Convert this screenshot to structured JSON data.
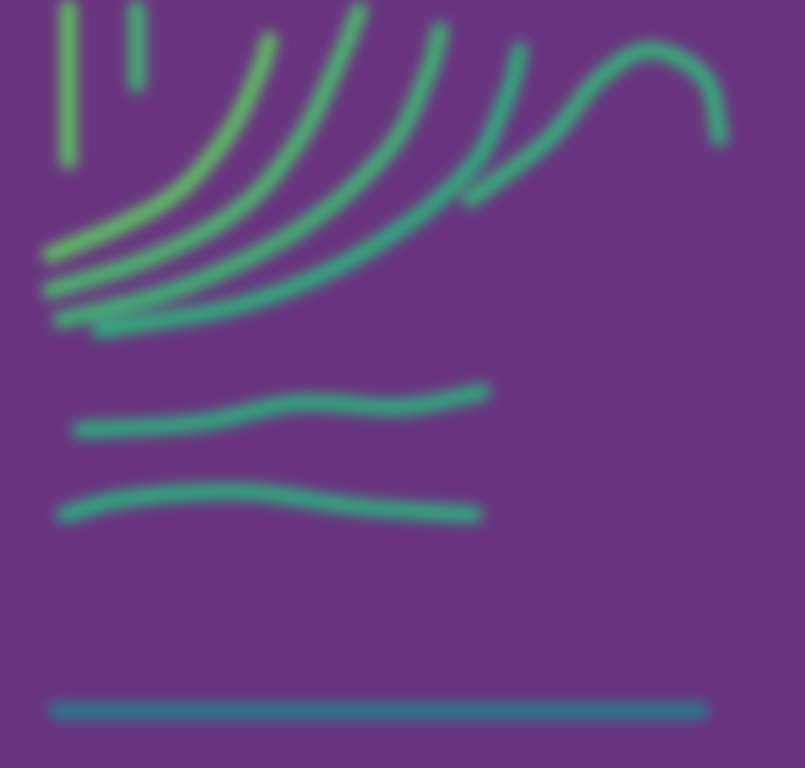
{
  "chart_data": {
    "type": "line",
    "xlim": [
      0,
      10
    ],
    "ylim": [
      0,
      10
    ],
    "grid": false,
    "tick_labels": false,
    "series": [
      {
        "color": "#5ec962",
        "x": [
          0.62,
          1.49,
          2.24,
          2.86,
          3.23,
          3.35
        ],
        "values": [
          6.68,
          7.07,
          7.53,
          8.3,
          9.09,
          9.48
        ]
      },
      {
        "color": "#4ac16d",
        "x": [
          0.62,
          1.86,
          2.98,
          3.73,
          4.22,
          4.47
        ],
        "values": [
          6.22,
          6.64,
          7.29,
          8.2,
          9.24,
          9.87
        ]
      },
      {
        "color": "#3fbc73",
        "x": [
          0.75,
          2.24,
          3.73,
          4.84,
          5.34,
          5.47
        ],
        "values": [
          5.83,
          6.25,
          7.03,
          8.07,
          9.11,
          9.61
        ]
      },
      {
        "color": "#2fb47c",
        "x": [
          1.24,
          3.11,
          4.6,
          5.84,
          6.34,
          6.46
        ],
        "values": [
          5.7,
          6.07,
          6.77,
          7.81,
          8.85,
          9.35
        ]
      },
      {
        "color": "#35b779",
        "x": [
          5.84,
          6.83,
          7.45,
          8.07,
          8.76,
          8.94
        ],
        "values": [
          7.4,
          8.2,
          8.98,
          9.35,
          8.98,
          8.2
        ]
      },
      {
        "color": "#2db27d",
        "x": [
          1.0,
          2.5,
          3.7,
          5.0,
          6.0
        ],
        "values": [
          4.4,
          4.5,
          4.76,
          4.7,
          4.9
        ]
      },
      {
        "color": "#2db27d",
        "x": [
          0.8,
          1.5,
          3.0,
          4.5,
          5.9
        ],
        "values": [
          3.3,
          3.5,
          3.6,
          3.4,
          3.3
        ]
      },
      {
        "color": "#5ec962",
        "x": [
          0.85,
          0.85
        ],
        "values": [
          9.9,
          7.9
        ]
      },
      {
        "color": "#3fbc73",
        "x": [
          1.7,
          1.7
        ],
        "values": [
          9.9,
          8.9
        ]
      },
      {
        "color": "#26828e",
        "x": [
          0.7,
          8.7
        ],
        "values": [
          0.75,
          0.75
        ]
      }
    ]
  }
}
